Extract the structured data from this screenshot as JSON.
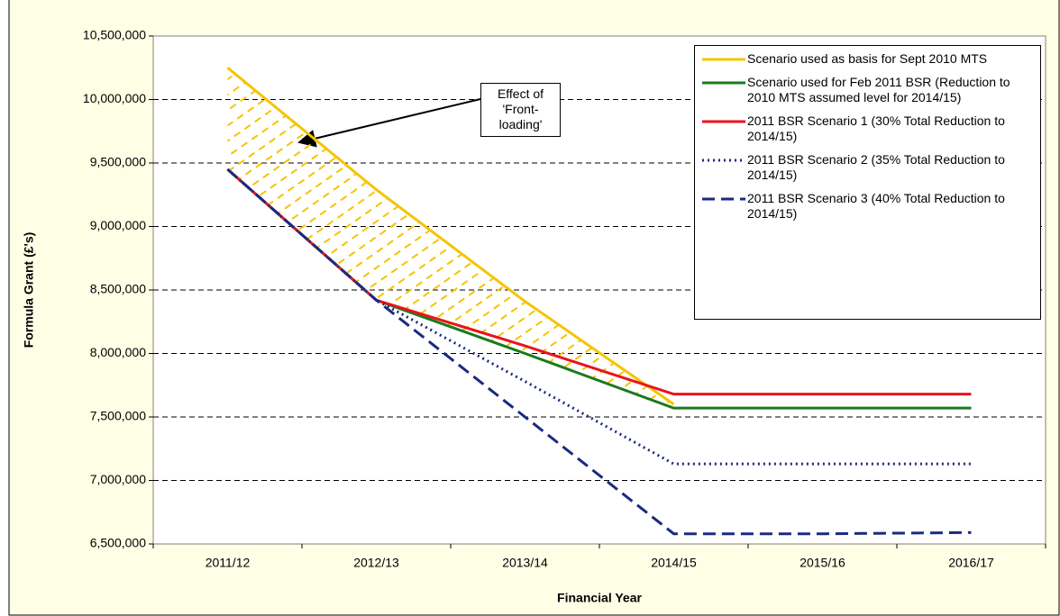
{
  "chart_data": {
    "type": "line",
    "xlabel": "Financial Year",
    "ylabel": "Formula Grant (£'s)",
    "categories": [
      "2011/12",
      "2012/13",
      "2013/14",
      "2014/15",
      "2015/16",
      "2016/17"
    ],
    "series": [
      {
        "name": "Scenario used as basis for Sept 2010 MTS",
        "color": "#f5c400",
        "style": "solid",
        "values": [
          10250000,
          9290000,
          8410000,
          7600000,
          null,
          null
        ]
      },
      {
        "name": "Scenario used for Feb 2011 BSR (Reduction to 2010 MTS assumed level for 2014/15)",
        "color": "#1a7a1a",
        "style": "solid",
        "values": [
          9450000,
          8420000,
          8000000,
          7570000,
          7570000,
          7570000
        ]
      },
      {
        "name": "2011 BSR Scenario 1  (30% Total Reduction to 2014/15)",
        "color": "#e8141c",
        "style": "solid",
        "values": [
          9450000,
          8420000,
          8060000,
          7680000,
          7680000,
          7680000
        ]
      },
      {
        "name": "2011 BSR Scenario 2  (35% Total Reduction to 2014/15)",
        "color": "#1a2a80",
        "style": "dotted",
        "values": [
          9450000,
          8420000,
          7780000,
          7130000,
          7130000,
          7130000
        ]
      },
      {
        "name": "2011 BSR Scenario 3  (40% Total Reduction to 2014/15)",
        "color": "#1a2a80",
        "style": "dashed",
        "values": [
          9450000,
          8420000,
          7500000,
          6580000,
          6580000,
          6590000
        ]
      }
    ],
    "ylim": [
      6500000,
      10500000
    ],
    "yticks": [
      {
        "value": 6500000,
        "label": "6,500,000"
      },
      {
        "value": 7000000,
        "label": "7,000,000"
      },
      {
        "value": 7500000,
        "label": "7,500,000"
      },
      {
        "value": 8000000,
        "label": "8,000,000"
      },
      {
        "value": 8500000,
        "label": "8,500,000"
      },
      {
        "value": 9000000,
        "label": "9,000,000"
      },
      {
        "value": 9500000,
        "label": "9,500,000"
      },
      {
        "value": 10000000,
        "label": "10,000,000"
      },
      {
        "value": 10500000,
        "label": "10,500,000"
      }
    ],
    "grid": true,
    "annotation": [
      "Effect of",
      "'Front-",
      "loading'"
    ]
  }
}
